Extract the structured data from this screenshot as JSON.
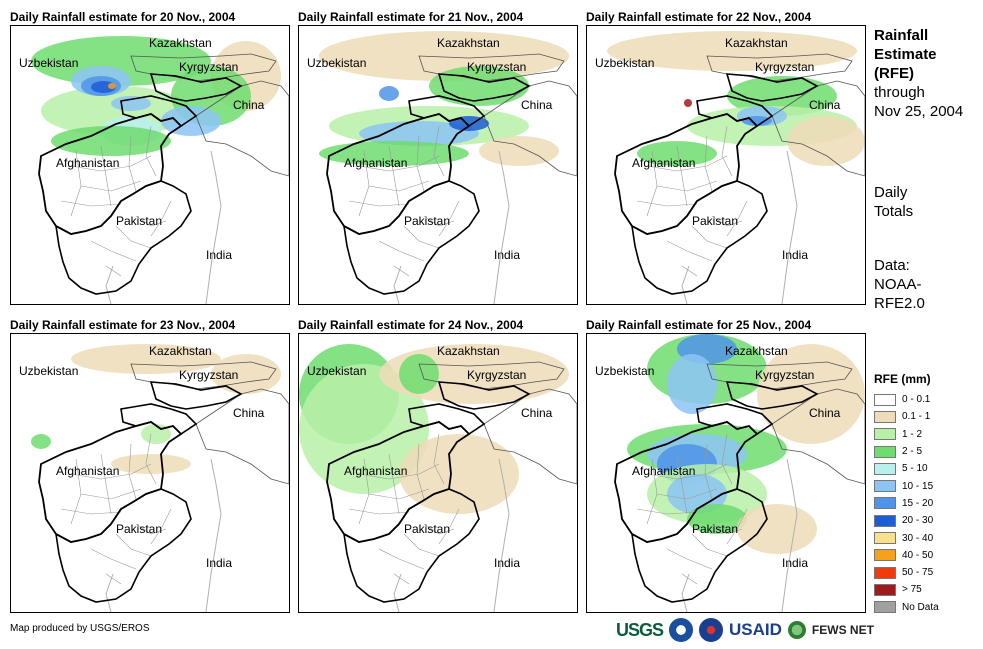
{
  "panels": [
    {
      "title": "Daily Rainfall estimate for 20 Nov., 2004",
      "country_labels": [
        "Kazakhstan",
        "Uzbekistan",
        "Kyrgyzstan",
        "China",
        "Afghanistan",
        "Pakistan",
        "India"
      ]
    },
    {
      "title": "Daily Rainfall estimate for 21 Nov., 2004",
      "country_labels": [
        "Kazakhstan",
        "Uzbekistan",
        "Kyrgyzstan",
        "China",
        "Afghanistan",
        "Pakistan",
        "India"
      ]
    },
    {
      "title": "Daily Rainfall estimate for 22 Nov., 2004",
      "country_labels": [
        "Kazakhstan",
        "Uzbekistan",
        "Kyrgyzstan",
        "China",
        "Afghanistan",
        "Pakistan",
        "India"
      ]
    },
    {
      "title": "Daily Rainfall estimate for 23 Nov., 2004",
      "country_labels": [
        "Kazakhstan",
        "Uzbekistan",
        "Kyrgyzstan",
        "China",
        "Afghanistan",
        "Pakistan",
        "India"
      ]
    },
    {
      "title": "Daily Rainfall estimate for 24 Nov., 2004",
      "country_labels": [
        "Kazakhstan",
        "Uzbekistan",
        "Kyrgyzstan",
        "China",
        "Afghanistan",
        "Pakistan",
        "India"
      ]
    },
    {
      "title": "Daily Rainfall estimate for 25 Nov., 2004",
      "country_labels": [
        "Kazakhstan",
        "Uzbekistan",
        "Kyrgyzstan",
        "China",
        "Afghanistan",
        "Pakistan",
        "India"
      ]
    }
  ],
  "sidebar": {
    "title_lines": [
      "Rainfall",
      "Estimate",
      "(RFE)"
    ],
    "subtitle_lines": [
      "through",
      "Nov 25, 2004"
    ],
    "daily_lines": [
      "Daily",
      "Totals"
    ],
    "data_lines": [
      "Data:",
      "NOAA-",
      "RFE2.0"
    ]
  },
  "legend": {
    "title": "RFE (mm)",
    "items": [
      {
        "label": "0 - 0.1",
        "color": "#ffffff"
      },
      {
        "label": "0.1 - 1",
        "color": "#eedcb8"
      },
      {
        "label": "1 - 2",
        "color": "#b8f0a8"
      },
      {
        "label": "2 - 5",
        "color": "#6fdc6f"
      },
      {
        "label": "5 - 10",
        "color": "#b8f0f0"
      },
      {
        "label": "10 - 15",
        "color": "#8cc4f4"
      },
      {
        "label": "15 - 20",
        "color": "#4f94e8"
      },
      {
        "label": "20 - 30",
        "color": "#1c5ed6"
      },
      {
        "label": "30 - 40",
        "color": "#f8e08c"
      },
      {
        "label": "40 - 50",
        "color": "#f4a21c"
      },
      {
        "label": "50 - 75",
        "color": "#f03c0c"
      },
      {
        "label": "> 75",
        "color": "#a01c1c"
      },
      {
        "label": "No Data",
        "color": "#a0a0a0"
      }
    ]
  },
  "footer": {
    "credit": "Map produced by USGS/EROS",
    "logos": [
      "USGS",
      "USAID",
      "FEWS NET"
    ]
  }
}
